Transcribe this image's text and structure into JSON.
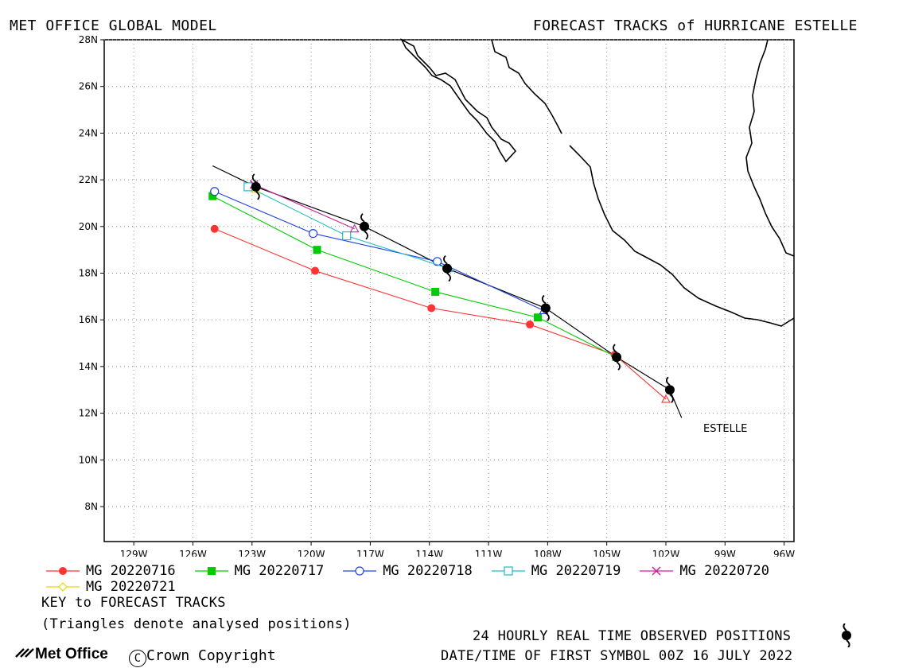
{
  "header": {
    "left_title": "MET OFFICE GLOBAL MODEL",
    "right_title": "FORECAST TRACKS of HURRICANE ESTELLE"
  },
  "storm_label": "ESTELLE",
  "legend": {
    "items": [
      {
        "label": "MG 20220716",
        "color": "#ff3333",
        "marker": "filled-circle"
      },
      {
        "label": "MG 20220717",
        "color": "#00cc00",
        "marker": "filled-square"
      },
      {
        "label": "MG 20220718",
        "color": "#2244dd",
        "marker": "open-circle"
      },
      {
        "label": "MG 20220719",
        "color": "#22bbcc",
        "marker": "open-square"
      },
      {
        "label": "MG 20220720",
        "color": "#cc2299",
        "marker": "cross"
      },
      {
        "label": "MG 20220721",
        "color": "#e6d800",
        "marker": "open-diamond"
      }
    ],
    "key_title": "KEY to FORECAST TRACKS",
    "key_note": "(Triangles denote analysed positions)"
  },
  "observed_note": "24 HOURLY REAL TIME OBSERVED POSITIONS",
  "first_symbol_note": "DATE/TIME OF FIRST SYMBOL 00Z 16 JULY 2022",
  "logo_text": "Met Office",
  "copyright_text": "Crown Copyright",
  "map": {
    "lon_range": [
      -130.5,
      -95.5
    ],
    "lat_range": [
      6.5,
      28
    ],
    "lon_ticks": [
      -129,
      -126,
      -123,
      -120,
      -117,
      -114,
      -111,
      -108,
      -105,
      -102,
      -99,
      -96
    ],
    "lon_tick_labels": [
      "129W",
      "126W",
      "123W",
      "120W",
      "117W",
      "114W",
      "111W",
      "108W",
      "105W",
      "102W",
      "99W",
      "96W"
    ],
    "lat_ticks": [
      8,
      10,
      12,
      14,
      16,
      18,
      20,
      22,
      24,
      26,
      28
    ],
    "lat_tick_labels": [
      "8N",
      "10N",
      "12N",
      "14N",
      "16N",
      "18N",
      "20N",
      "22N",
      "24N",
      "26N",
      "28N"
    ],
    "grid": true
  },
  "chart_data": {
    "type": "scatter",
    "observed_track": [
      [
        -101.2,
        11.8
      ],
      [
        -101.8,
        13.0
      ],
      [
        -104.5,
        14.4
      ],
      [
        -108.1,
        16.5
      ],
      [
        -113.1,
        18.2
      ],
      [
        -117.3,
        20.0
      ],
      [
        -122.8,
        21.7
      ],
      [
        -125.0,
        22.6
      ]
    ],
    "observed_positions_24h": [
      [
        -101.8,
        13.0
      ],
      [
        -104.5,
        14.4
      ],
      [
        -108.1,
        16.5
      ],
      [
        -113.1,
        18.2
      ],
      [
        -117.3,
        20.0
      ],
      [
        -122.8,
        21.7
      ]
    ],
    "series": [
      {
        "name": "MG 20220716",
        "analysed": [
          -102.0,
          12.6
        ],
        "points": [
          [
            -104.6,
            14.5
          ],
          [
            -108.9,
            15.8
          ],
          [
            -113.9,
            16.5
          ],
          [
            -119.8,
            18.1
          ],
          [
            -124.9,
            19.9
          ]
        ]
      },
      {
        "name": "MG 20220717",
        "analysed": [
          -104.5,
          14.4
        ],
        "points": [
          [
            -108.5,
            16.1
          ],
          [
            -113.7,
            17.2
          ],
          [
            -119.7,
            19.0
          ],
          [
            -125.0,
            21.3
          ]
        ]
      },
      {
        "name": "MG 20220718",
        "analysed": [
          -108.2,
          16.4
        ],
        "points": [
          [
            -113.6,
            18.5
          ],
          [
            -119.9,
            19.7
          ],
          [
            -124.9,
            21.5
          ]
        ]
      },
      {
        "name": "MG 20220719",
        "analysed": [
          -113.0,
          18.2
        ],
        "points": [
          [
            -118.2,
            19.6
          ],
          [
            -123.2,
            21.7
          ]
        ]
      },
      {
        "name": "MG 20220720",
        "analysed": [
          -117.8,
          19.9
        ],
        "points": [
          [
            -122.9,
            21.8
          ]
        ]
      },
      {
        "name": "MG 20220721",
        "analysed": [
          -122.8,
          21.6
        ],
        "points": []
      }
    ]
  }
}
